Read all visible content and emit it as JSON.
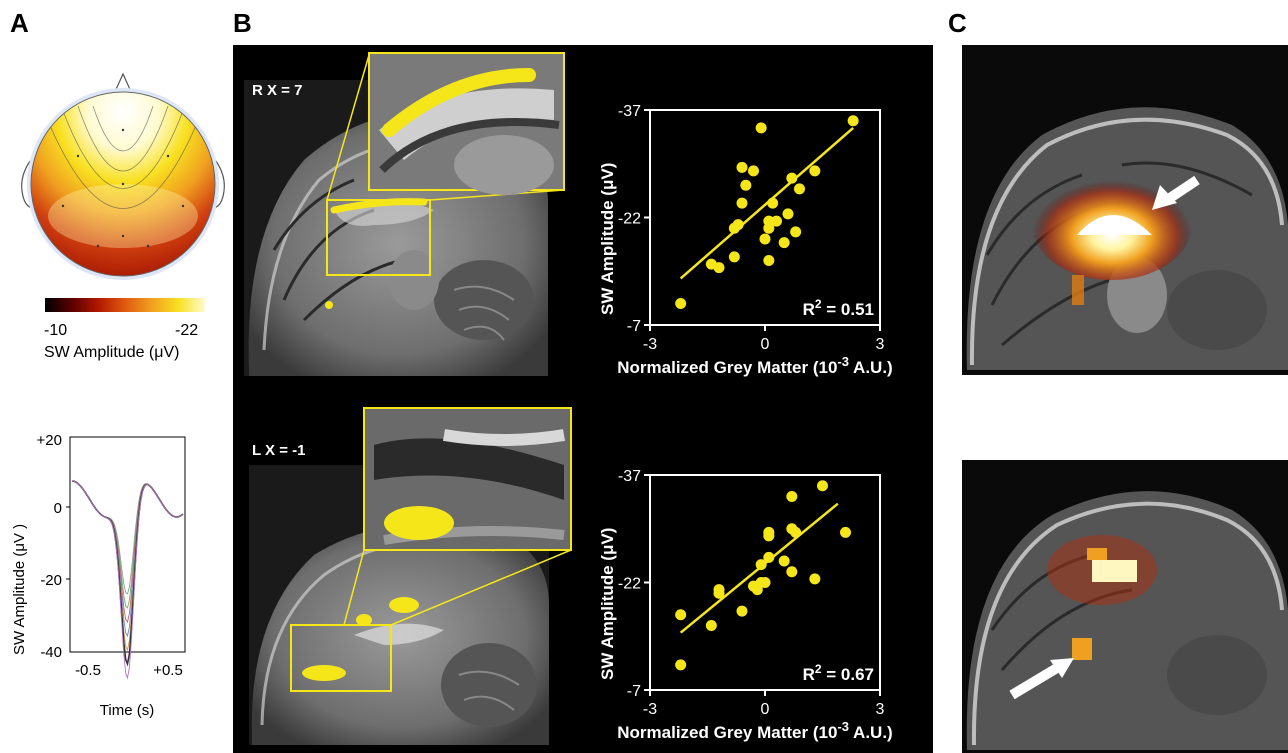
{
  "panels": {
    "a": "A",
    "b": "B",
    "c": "C"
  },
  "colorbar": {
    "low": "-10",
    "high": "-22",
    "label": "SW Amplitude (μV)",
    "colors": [
      "#000000",
      "#5a0000",
      "#b01800",
      "#e05a10",
      "#f0a020",
      "#f8e020",
      "#fffbd0"
    ]
  },
  "waveform": {
    "yticks": [
      "+20",
      "0",
      "-20",
      "-40"
    ],
    "xticks": [
      "-0.5",
      "+0.5"
    ],
    "ylabel": "SW Amplitude (μV )",
    "xlabel": "Time (s)"
  },
  "mri": {
    "top_label": "R X = 7",
    "bottom_label": "L X = -1",
    "highlight_color": "#f5e61a"
  },
  "chart_data": [
    {
      "type": "scatter",
      "xlabel_main": "Normalized Grey Matter (10",
      "xlabel_sup": "-3",
      "xlabel_end": " A.U.)",
      "ylabel": "SW Amplitude (μV)",
      "xlim": [
        -3,
        3
      ],
      "ylim": [
        -7,
        -37
      ],
      "xticks": [
        "-3",
        "0",
        "3"
      ],
      "yticks": [
        "-37",
        "-22",
        "-7"
      ],
      "r2_label": "R",
      "r2_sup": "2",
      "r2_value": " = 0.51",
      "point_color": "#f5e61a",
      "x": [
        -2.2,
        -1.4,
        -1.2,
        -0.8,
        -0.8,
        -0.7,
        -0.6,
        -0.6,
        -0.5,
        -0.3,
        -0.1,
        0.0,
        0.1,
        0.1,
        0.1,
        0.2,
        0.3,
        0.5,
        0.6,
        0.7,
        0.8,
        0.9,
        1.3,
        2.3
      ],
      "y": [
        -10.0,
        -15.5,
        -15.0,
        -16.5,
        -20.5,
        -21.0,
        -24.0,
        -29.0,
        -26.5,
        -28.5,
        -34.5,
        -19.0,
        -16.0,
        -21.5,
        -20.5,
        -24.0,
        -21.5,
        -18.5,
        -22.5,
        -27.5,
        -20.0,
        -26.0,
        -28.5,
        -35.5
      ],
      "fit_x": [
        -2.2,
        2.3
      ],
      "fit_y": [
        -13.5,
        -34.5
      ]
    },
    {
      "type": "scatter",
      "xlabel_main": "Normalized Grey Matter (10",
      "xlabel_sup": "-3",
      "xlabel_end": " A.U.)",
      "ylabel": "SW Amplitude (μV)",
      "xlim": [
        -3,
        3
      ],
      "ylim": [
        -7,
        -37
      ],
      "xticks": [
        "-3",
        "0",
        "3"
      ],
      "yticks": [
        "-37",
        "-22",
        "-7"
      ],
      "r2_label": "R",
      "r2_sup": "2",
      "r2_value": " = 0.67",
      "point_color": "#f5e61a",
      "x": [
        -2.2,
        -2.2,
        -1.4,
        -1.2,
        -1.2,
        -0.6,
        -0.3,
        -0.2,
        -0.1,
        -0.1,
        0.0,
        0.1,
        0.1,
        0.1,
        0.5,
        0.7,
        0.7,
        0.7,
        0.8,
        1.3,
        1.5,
        2.1
      ],
      "y": [
        -10.5,
        -17.5,
        -16.0,
        -20.5,
        -21.0,
        -18.0,
        -21.5,
        -21.0,
        -22.0,
        -24.5,
        -22.0,
        -29.0,
        -28.5,
        -25.5,
        -25.0,
        -23.5,
        -29.5,
        -34.0,
        -29.0,
        -22.5,
        -35.5,
        -29.0
      ],
      "fit_x": [
        -2.2,
        1.9
      ],
      "fit_y": [
        -15.0,
        -33.0
      ]
    }
  ]
}
